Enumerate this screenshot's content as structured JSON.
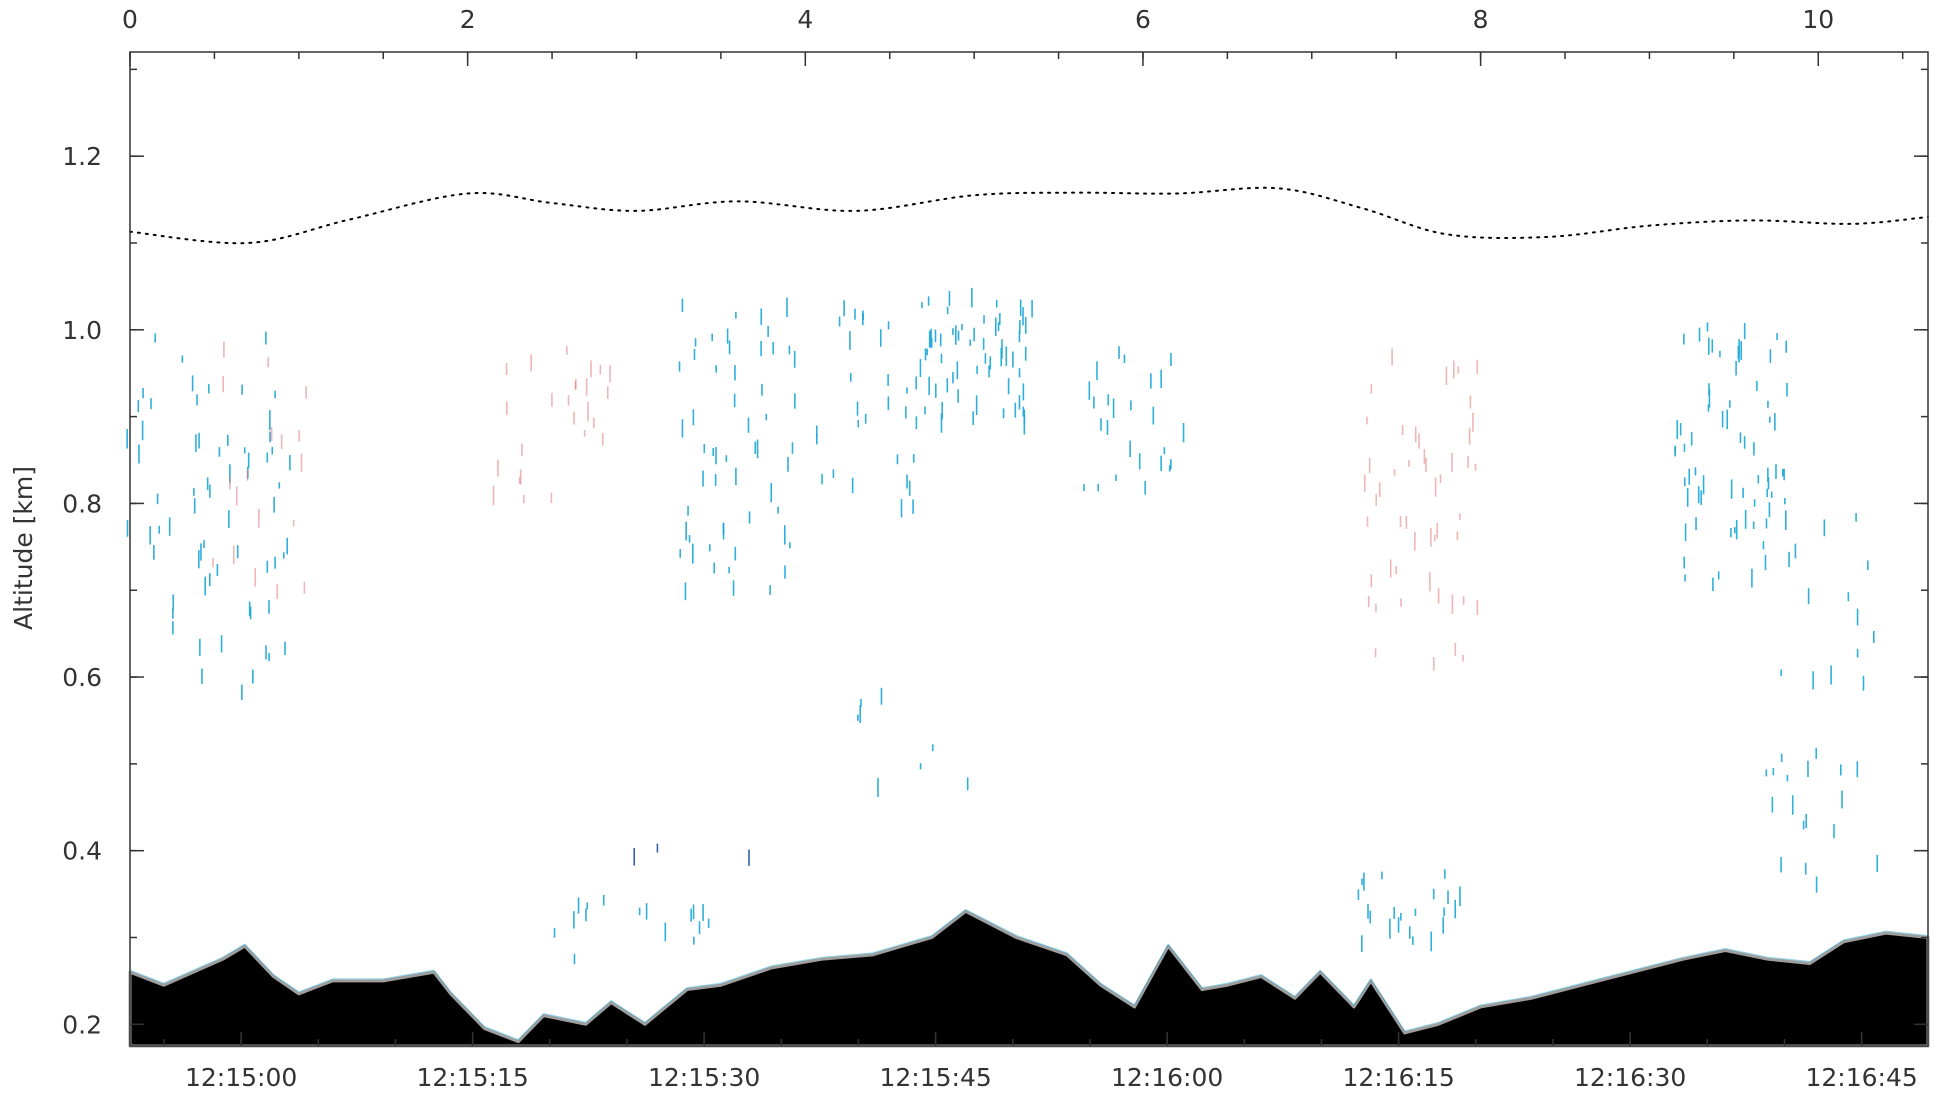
{
  "chart_data": {
    "type": "curtain",
    "top_axis": {
      "label": "",
      "ticks": [
        "0",
        "2",
        "4",
        "6",
        "8",
        "10"
      ],
      "range": [
        0,
        10.65
      ]
    },
    "bottom_axis": {
      "label": "",
      "ticks": [
        "12:15:00",
        "12:15:15",
        "12:15:30",
        "12:15:45",
        "12:16:00",
        "12:16:15",
        "12:16:30",
        "12:16:45"
      ],
      "range_seconds": [
        -7.2,
        109.3
      ]
    },
    "y_axis": {
      "label": "Altitude  [km]",
      "ticks": [
        "0.2",
        "0.4",
        "0.6",
        "0.8",
        "1.0",
        "1.2"
      ],
      "range": [
        0.175,
        1.32
      ]
    },
    "grid": false,
    "series": [
      {
        "kind": "dotted-line",
        "x_km": [
          0,
          0.7,
          1.3,
          2.0,
          2.5,
          3.0,
          3.6,
          4.3,
          5.0,
          5.6,
          6.2,
          6.8,
          7.3,
          7.8,
          8.4,
          9.0,
          9.6,
          10.2,
          10.65
        ],
        "y_km": [
          1.113,
          1.1,
          1.127,
          1.157,
          1.146,
          1.137,
          1.148,
          1.137,
          1.155,
          1.158,
          1.157,
          1.163,
          1.14,
          1.11,
          1.107,
          1.12,
          1.126,
          1.122,
          1.13
        ]
      },
      {
        "kind": "terrain-fill",
        "x_km": [
          0,
          0.2,
          0.55,
          0.68,
          0.85,
          1.0,
          1.2,
          1.5,
          1.8,
          1.9,
          2.1,
          2.3,
          2.45,
          2.7,
          2.85,
          3.05,
          3.3,
          3.5,
          3.8,
          4.1,
          4.4,
          4.75,
          4.95,
          5.25,
          5.55,
          5.75,
          5.95,
          6.15,
          6.35,
          6.5,
          6.7,
          6.9,
          7.05,
          7.25,
          7.35,
          7.55,
          7.75,
          8.0,
          8.3,
          8.6,
          8.9,
          9.2,
          9.45,
          9.7,
          9.95,
          10.15,
          10.4,
          10.65
        ],
        "y_km": [
          0.26,
          0.245,
          0.275,
          0.29,
          0.255,
          0.235,
          0.25,
          0.25,
          0.26,
          0.235,
          0.195,
          0.18,
          0.21,
          0.2,
          0.225,
          0.2,
          0.24,
          0.245,
          0.265,
          0.275,
          0.28,
          0.3,
          0.33,
          0.3,
          0.28,
          0.245,
          0.22,
          0.29,
          0.24,
          0.245,
          0.255,
          0.23,
          0.26,
          0.22,
          0.25,
          0.19,
          0.2,
          0.22,
          0.23,
          0.245,
          0.26,
          0.275,
          0.285,
          0.275,
          0.27,
          0.295,
          0.305,
          0.3
        ]
      }
    ],
    "colors": {
      "background": "#ffffff",
      "terrain": "#000000",
      "terrain_edge": "#9e9e9e",
      "scatter_blue": "#1aa6d6",
      "scatter_dark_blue": "#1f4fa8",
      "scatter_red": "#e07a7a",
      "axes": "#333333"
    },
    "scatter_clusters": [
      {
        "color": "scatter_blue",
        "x_km": 0.6,
        "y_km": [
          0.55,
          1.0
        ],
        "density": 45
      },
      {
        "color": "scatter_blue",
        "x_km": 0.25,
        "y_km": [
          0.75,
          1.0
        ],
        "density": 20
      },
      {
        "color": "scatter_red",
        "x_km": 0.7,
        "y_km": [
          0.7,
          1.0
        ],
        "density": 18
      },
      {
        "color": "scatter_red",
        "x_km": 2.5,
        "y_km": [
          0.8,
          1.0
        ],
        "density": 25
      },
      {
        "color": "scatter_blue",
        "x_km": 3.6,
        "y_km": [
          0.7,
          1.05
        ],
        "density": 55
      },
      {
        "color": "scatter_blue",
        "x_km": 4.4,
        "y_km": [
          0.8,
          1.05
        ],
        "density": 30
      },
      {
        "color": "scatter_blue",
        "x_km": 5.0,
        "y_km": [
          0.9,
          1.05
        ],
        "density": 60
      },
      {
        "color": "scatter_blue",
        "x_km": 6.0,
        "y_km": [
          0.82,
          1.0
        ],
        "density": 25
      },
      {
        "color": "scatter_red",
        "x_km": 7.65,
        "y_km": [
          0.62,
          0.98
        ],
        "density": 50
      },
      {
        "color": "scatter_blue",
        "x_km": 9.5,
        "y_km": [
          0.7,
          1.02
        ],
        "density": 70
      },
      {
        "color": "scatter_blue",
        "x_km": 10.0,
        "y_km": [
          0.6,
          0.8
        ],
        "density": 15
      },
      {
        "color": "scatter_blue",
        "x_km": 4.65,
        "y_km": [
          0.48,
          0.6
        ],
        "density": 8
      },
      {
        "color": "scatter_blue",
        "x_km": 7.55,
        "y_km": [
          0.3,
          0.38
        ],
        "density": 22
      },
      {
        "color": "scatter_blue",
        "x_km": 10.0,
        "y_km": [
          0.37,
          0.52
        ],
        "density": 18
      },
      {
        "color": "scatter_blue",
        "x_km": 3.2,
        "y_km": [
          0.3,
          0.35
        ],
        "density": 8
      },
      {
        "color": "scatter_dark_blue",
        "x_km": 3.32,
        "y_km": [
          0.39,
          0.41
        ],
        "density": 3
      },
      {
        "color": "scatter_blue",
        "x_km": 2.8,
        "y_km": [
          0.28,
          0.35
        ],
        "density": 8
      }
    ]
  }
}
